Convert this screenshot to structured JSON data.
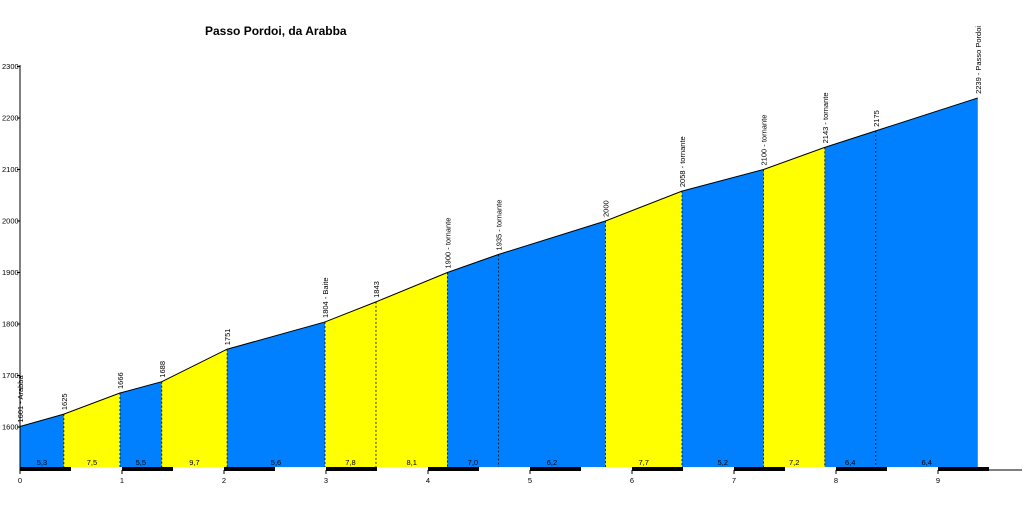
{
  "chart_data": {
    "type": "area",
    "title": "Passo Pordoi, da Arabba",
    "xlabel": "",
    "ylabel": "",
    "xlim": [
      0,
      9.75
    ],
    "ylim": [
      1510,
      2300
    ],
    "x_ticks": [
      0,
      1,
      2,
      3,
      4,
      5,
      6,
      7,
      8,
      9
    ],
    "y_ticks": [
      1600,
      1700,
      1800,
      1900,
      2000,
      2100,
      2200,
      2300
    ],
    "grid": false,
    "colors": {
      "blue": "#0080ff",
      "yellow": "#ffff00",
      "line": "#000000"
    },
    "segments": [
      {
        "x0": 0.0,
        "x1": 0.43,
        "gradient": "5,3",
        "color": "blue"
      },
      {
        "x0": 0.43,
        "x1": 0.98,
        "gradient": "7,5",
        "color": "yellow"
      },
      {
        "x0": 0.98,
        "x1": 1.39,
        "gradient": "5,5",
        "color": "blue"
      },
      {
        "x0": 1.39,
        "x1": 2.03,
        "gradient": "9,7",
        "color": "yellow"
      },
      {
        "x0": 2.03,
        "x1": 2.99,
        "gradient": "5,6",
        "color": "blue"
      },
      {
        "x0": 2.99,
        "x1": 3.49,
        "gradient": "7,8",
        "color": "yellow"
      },
      {
        "x0": 3.49,
        "x1": 4.19,
        "gradient": "8,1",
        "color": "yellow"
      },
      {
        "x0": 4.19,
        "x1": 4.69,
        "gradient": "7,0",
        "color": "blue"
      },
      {
        "x0": 4.69,
        "x1": 5.74,
        "gradient": "6,2",
        "color": "blue"
      },
      {
        "x0": 5.74,
        "x1": 6.49,
        "gradient": "7,7",
        "color": "yellow"
      },
      {
        "x0": 6.49,
        "x1": 7.29,
        "gradient": "5,2",
        "color": "blue"
      },
      {
        "x0": 7.29,
        "x1": 7.89,
        "gradient": "7,2",
        "color": "yellow"
      },
      {
        "x0": 7.89,
        "x1": 8.39,
        "gradient": "6,4",
        "color": "blue"
      },
      {
        "x0": 8.39,
        "x1": 9.39,
        "gradient": "6,4",
        "color": "blue"
      }
    ],
    "points": [
      {
        "x": 0.0,
        "y": 1601,
        "label": "1601 - Arabba"
      },
      {
        "x": 0.43,
        "y": 1625,
        "label": "1625"
      },
      {
        "x": 0.98,
        "y": 1666,
        "label": "1666"
      },
      {
        "x": 1.39,
        "y": 1688,
        "label": "1688"
      },
      {
        "x": 2.03,
        "y": 1751,
        "label": "1751"
      },
      {
        "x": 2.99,
        "y": 1804,
        "label": "1804 - Baite"
      },
      {
        "x": 3.49,
        "y": 1843,
        "label": "1843"
      },
      {
        "x": 4.19,
        "y": 1900,
        "label": "1900 - tornante"
      },
      {
        "x": 4.69,
        "y": 1935,
        "label": "1935 - tornante"
      },
      {
        "x": 5.74,
        "y": 2000,
        "label": "2000"
      },
      {
        "x": 6.49,
        "y": 2058,
        "label": "2058 - tornante"
      },
      {
        "x": 7.29,
        "y": 2100,
        "label": "2100 - tornante"
      },
      {
        "x": 7.89,
        "y": 2143,
        "label": "2143 - tornante"
      },
      {
        "x": 8.39,
        "y": 2175,
        "label": "2175"
      },
      {
        "x": 9.39,
        "y": 2239,
        "label": "2239 - Passo Pordoi"
      }
    ]
  }
}
